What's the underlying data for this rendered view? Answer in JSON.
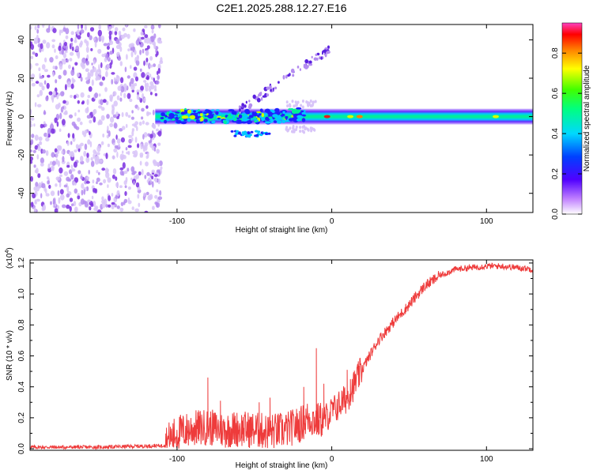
{
  "title": "C2E1.2025.288.12.27.E16",
  "colors": {
    "signal_red": "#ee3b3b",
    "noise_purple": "#7733dd",
    "axis": "#000000"
  },
  "chart_data": [
    {
      "type": "heatmap",
      "xlabel": "Height of straight line (km)",
      "ylabel": "Frequency (Hz)",
      "xlim": [
        -195,
        130
      ],
      "ylim": [
        -50,
        48
      ],
      "x_ticks": [
        -100,
        0,
        100
      ],
      "y_ticks": [
        -40,
        -20,
        0,
        20,
        40
      ],
      "x_tick_labels": [
        "-100",
        "0",
        "100"
      ],
      "y_tick_labels": [
        "-40",
        "-20",
        "0",
        "20",
        "40"
      ],
      "noise_region_x": [
        -195,
        -110
      ],
      "band_center_hz": 0,
      "colorbar": {
        "label": "Normalized spectral amplitude",
        "range": [
          0,
          0.95
        ],
        "ticks": [
          0.0,
          0.2,
          0.4,
          0.6,
          0.8
        ],
        "tick_labels": [
          "0.0",
          "0.2",
          "0.4",
          "0.6",
          "0.8"
        ]
      }
    },
    {
      "type": "line",
      "xlabel": "Height of straight line (km)",
      "ylabel": "SNR (10 * v/v)",
      "y_multiplier_label": "(x10",
      "y_multiplier_exp": "4",
      "y_multiplier_close": ")",
      "xlim": [
        -195,
        130
      ],
      "ylim": [
        -0.01,
        1.22
      ],
      "x_ticks": [
        -100,
        0,
        100
      ],
      "y_ticks": [
        0.0,
        0.2,
        0.4,
        0.6,
        0.8,
        1.0,
        1.2
      ],
      "x_tick_labels": [
        "-100",
        "0",
        "100"
      ],
      "y_tick_labels": [
        "0.0",
        "0.2",
        "0.4",
        "0.6",
        "0.8",
        "1.0",
        "1.2"
      ],
      "series": [
        {
          "name": "SNR",
          "x": [
            -195,
            -150,
            -110,
            -100,
            -90,
            -80,
            -70,
            -60,
            -50,
            -40,
            -30,
            -20,
            -15,
            -10,
            -5,
            0,
            10,
            20,
            30,
            40,
            50,
            60,
            70,
            80,
            90,
            100,
            110,
            120,
            130
          ],
          "y": [
            0.01,
            0.01,
            0.02,
            0.1,
            0.13,
            0.14,
            0.12,
            0.13,
            0.12,
            0.11,
            0.12,
            0.16,
            0.2,
            0.18,
            0.19,
            0.24,
            0.33,
            0.52,
            0.7,
            0.82,
            0.93,
            1.05,
            1.12,
            1.16,
            1.17,
            1.18,
            1.18,
            1.17,
            1.16
          ],
          "spikes": [
            [
              -80,
              0.46
            ],
            [
              -72,
              0.31
            ],
            [
              -47,
              0.3
            ],
            [
              -40,
              0.33
            ],
            [
              -18,
              0.4
            ],
            [
              -10,
              0.65
            ],
            [
              -5,
              0.42
            ],
            [
              10,
              0.51
            ],
            [
              12,
              0.45
            ]
          ]
        }
      ]
    }
  ]
}
